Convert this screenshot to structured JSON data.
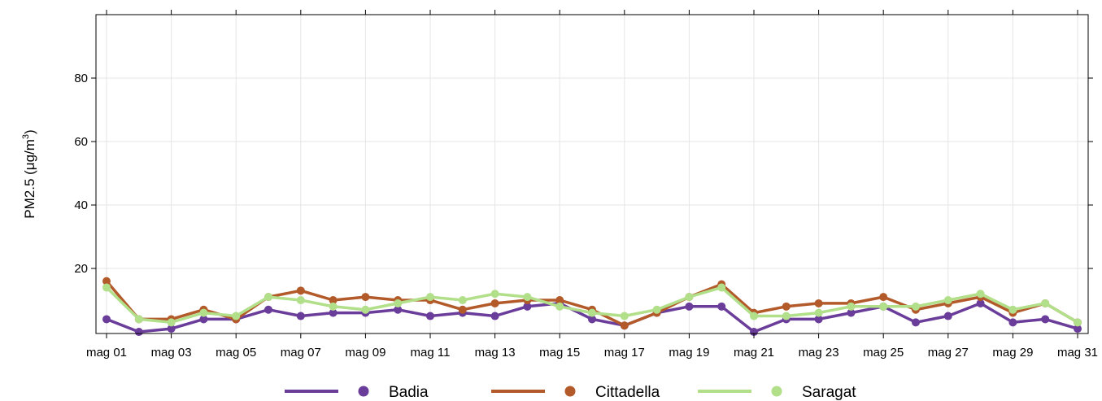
{
  "chart_data": {
    "type": "line",
    "title": "",
    "xlabel": "",
    "ylabel": "PM2.5 (μg/m³)",
    "ylabel_parts": {
      "main": "PM2.5 (μg/m",
      "sup": "3",
      "close": ")"
    },
    "ylim": [
      -0.5,
      100
    ],
    "yticks": [
      20,
      40,
      60,
      80
    ],
    "grid": true,
    "legend_position": "bottom",
    "x": [
      "mag 01",
      "mag 02",
      "mag 03",
      "mag 04",
      "mag 05",
      "mag 06",
      "mag 07",
      "mag 08",
      "mag 09",
      "mag 10",
      "mag 11",
      "mag 12",
      "mag 13",
      "mag 14",
      "mag 15",
      "mag 16",
      "mag 17",
      "mag 18",
      "mag 19",
      "mag 20",
      "mag 21",
      "mag 22",
      "mag 23",
      "mag 24",
      "mag 25",
      "mag 26",
      "mag 27",
      "mag 28",
      "mag 29",
      "mag 30",
      "mag 31"
    ],
    "x_tick_labels": [
      "mag 01",
      "mag 03",
      "mag 05",
      "mag 07",
      "mag 09",
      "mag 11",
      "mag 13",
      "mag 15",
      "mag 17",
      "mag 19",
      "mag 21",
      "mag 23",
      "mag 25",
      "mag 27",
      "mag 29",
      "mag 31"
    ],
    "series": [
      {
        "name": "Badia",
        "color": "#6b3d9a",
        "values": [
          4,
          0,
          1,
          4,
          4,
          7,
          5,
          6,
          6,
          7,
          5,
          6,
          5,
          8,
          9,
          4,
          2,
          6,
          8,
          8,
          0,
          4,
          4,
          6,
          8,
          3,
          5,
          9,
          3,
          4,
          1
        ]
      },
      {
        "name": "Cittadella",
        "color": "#b35a2a",
        "values": [
          16,
          4,
          4,
          7,
          4,
          11,
          13,
          10,
          11,
          10,
          10,
          7,
          9,
          10,
          10,
          7,
          2,
          6,
          11,
          15,
          6,
          8,
          9,
          9,
          11,
          7,
          9,
          11,
          6,
          9,
          3
        ]
      },
      {
        "name": "Saragat",
        "color": "#b2df8a",
        "values": [
          14,
          4,
          3,
          6,
          5,
          11,
          10,
          8,
          7,
          9,
          11,
          10,
          12,
          11,
          8,
          6,
          5,
          7,
          11,
          14,
          5,
          5,
          6,
          8,
          8,
          8,
          10,
          12,
          7,
          9,
          3
        ]
      }
    ]
  }
}
